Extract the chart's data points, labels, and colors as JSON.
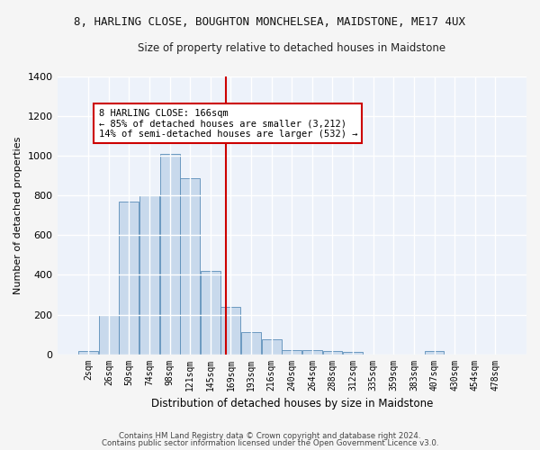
{
  "title": "8, HARLING CLOSE, BOUGHTON MONCHELSEA, MAIDSTONE, ME17 4UX",
  "subtitle": "Size of property relative to detached houses in Maidstone",
  "xlabel": "Distribution of detached houses by size in Maidstone",
  "ylabel": "Number of detached properties",
  "bar_color": "#c8d9ec",
  "bar_edge_color": "#5a8db8",
  "categories": [
    "2sqm",
    "26sqm",
    "50sqm",
    "74sqm",
    "98sqm",
    "121sqm",
    "145sqm",
    "169sqm",
    "193sqm",
    "216sqm",
    "240sqm",
    "264sqm",
    "288sqm",
    "312sqm",
    "335sqm",
    "359sqm",
    "383sqm",
    "407sqm",
    "430sqm",
    "454sqm",
    "478sqm"
  ],
  "values": [
    18,
    200,
    770,
    800,
    1010,
    890,
    420,
    240,
    110,
    75,
    22,
    22,
    18,
    12,
    0,
    0,
    0,
    18,
    0,
    0,
    0
  ],
  "vline_index": 6.78,
  "vline_color": "#cc0000",
  "annotation_text": "8 HARLING CLOSE: 166sqm\n← 85% of detached houses are smaller (3,212)\n14% of semi-detached houses are larger (532) →",
  "annotation_box_color": "#ffffff",
  "annotation_edge_color": "#cc0000",
  "ylim": [
    0,
    1400
  ],
  "yticks": [
    0,
    200,
    400,
    600,
    800,
    1000,
    1200,
    1400
  ],
  "background_color": "#edf2fa",
  "grid_color": "#ffffff",
  "fig_bg_color": "#f5f5f5",
  "footer1": "Contains HM Land Registry data © Crown copyright and database right 2024.",
  "footer2": "Contains public sector information licensed under the Open Government Licence v3.0."
}
